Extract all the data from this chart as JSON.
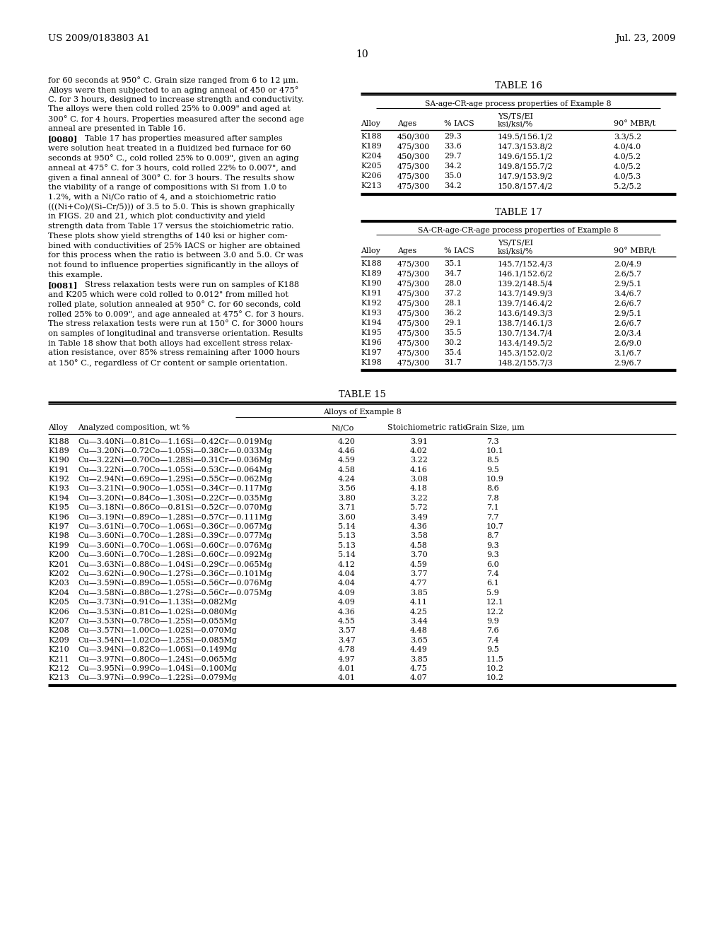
{
  "page_number": "10",
  "header_left": "US 2009/0183803 A1",
  "header_right": "Jul. 23, 2009",
  "body_text": [
    "for 60 seconds at 950° C. Grain size ranged from 6 to 12 μm.",
    "Alloys were then subjected to an aging anneal of 450 or 475°",
    "C. for 3 hours, designed to increase strength and conductivity.",
    "The alloys were then cold rolled 25% to 0.009\" and aged at",
    "300° C. for 4 hours. Properties measured after the second age",
    "anneal are presented in Table 16.",
    "[0080]",
    "Table 17 has properties measured after samples",
    "were solution heat treated in a fluidized bed furnace for 60",
    "seconds at 950° C., cold rolled 25% to 0.009\", given an aging",
    "anneal at 475° C. for 3 hours, cold rolled 22% to 0.007\", and",
    "given a final anneal of 300° C. for 3 hours. The results show",
    "the viability of a range of compositions with Si from 1.0 to",
    "1.2%, with a Ni/Co ratio of 4, and a stoichiometric ratio",
    "(((Ni+Co)/(Si–Cr/5))) of 3.5 to 5.0. This is shown graphically",
    "in FIGS. 20 and 21, which plot conductivity and yield",
    "strength data from Table 17 versus the stoichiometric ratio.",
    "These plots show yield strengths of 140 ksi or higher com-",
    "bined with conductivities of 25% IACS or higher are obtained",
    "for this process when the ratio is between 3.0 and 5.0. Cr was",
    "not found to influence properties significantly in the alloys of",
    "this example.",
    "[0081]",
    "Stress relaxation tests were run on samples of K188",
    "and K205 which were cold rolled to 0.012\" from milled hot",
    "rolled plate, solution annealed at 950° C. for 60 seconds, cold",
    "rolled 25% to 0.009\", and age annealed at 475° C. for 3 hours.",
    "The stress relaxation tests were run at 150° C. for 3000 hours",
    "on samples of longitudinal and transverse orientation. Results",
    "in Table 18 show that both alloys had excellent stress relax-",
    "ation resistance, over 85% stress remaining after 1000 hours",
    "at 150° C., regardless of Cr content or sample orientation."
  ],
  "table16": {
    "title": "TABLE 16",
    "subtitle": "SA-age-CR-age process properties of Example 8",
    "col_headers_line1": [
      "",
      "",
      "",
      "YS/TS/EI",
      ""
    ],
    "col_headers_line2": [
      "Alloy",
      "Ages",
      "% IACS",
      "ksi/ksi/%",
      "90° MBR/t"
    ],
    "rows": [
      [
        "K188",
        "450/300",
        "29.3",
        "149.5/156.1/2",
        "3.3/5.2"
      ],
      [
        "K189",
        "475/300",
        "33.6",
        "147.3/153.8/2",
        "4.0/4.0"
      ],
      [
        "K204",
        "450/300",
        "29.7",
        "149.6/155.1/2",
        "4.0/5.2"
      ],
      [
        "K205",
        "475/300",
        "34.2",
        "149.8/155.7/2",
        "4.0/5.2"
      ],
      [
        "K206",
        "475/300",
        "35.0",
        "147.9/153.9/2",
        "4.0/5.3"
      ],
      [
        "K213",
        "475/300",
        "34.2",
        "150.8/157.4/2",
        "5.2/5.2"
      ]
    ]
  },
  "table17": {
    "title": "TABLE 17",
    "subtitle": "SA-CR-age-CR-age process properties of Example 8",
    "col_headers_line1": [
      "",
      "",
      "",
      "YS/TS/EI",
      ""
    ],
    "col_headers_line2": [
      "Alloy",
      "Ages",
      "% IACS",
      "ksi/ksi/%",
      "90° MBR/t"
    ],
    "rows": [
      [
        "K188",
        "475/300",
        "35.1",
        "145.7/152.4/3",
        "2.0/4.9"
      ],
      [
        "K189",
        "475/300",
        "34.7",
        "146.1/152.6/2",
        "2.6/5.7"
      ],
      [
        "K190",
        "475/300",
        "28.0",
        "139.2/148.5/4",
        "2.9/5.1"
      ],
      [
        "K191",
        "475/300",
        "37.2",
        "143.7/149.9/3",
        "3.4/6.7"
      ],
      [
        "K192",
        "475/300",
        "28.1",
        "139.7/146.4/2",
        "2.6/6.7"
      ],
      [
        "K193",
        "475/300",
        "36.2",
        "143.6/149.3/3",
        "2.9/5.1"
      ],
      [
        "K194",
        "475/300",
        "29.1",
        "138.7/146.1/3",
        "2.6/6.7"
      ],
      [
        "K195",
        "475/300",
        "35.5",
        "130.7/134.7/4",
        "2.0/3.4"
      ],
      [
        "K196",
        "475/300",
        "30.2",
        "143.4/149.5/2",
        "2.6/9.0"
      ],
      [
        "K197",
        "475/300",
        "35.4",
        "145.3/152.0/2",
        "3.1/6.7"
      ],
      [
        "K198",
        "475/300",
        "31.7",
        "148.2/155.7/3",
        "2.9/6.7"
      ]
    ]
  },
  "table15": {
    "title": "TABLE 15",
    "subtitle": "Alloys of Example 8",
    "col_headers": [
      "Alloy",
      "Analyzed composition, wt %",
      "Ni/Co",
      "Stoichiometric ratio",
      "Grain Size, μm"
    ],
    "rows": [
      [
        "K188",
        "Cu—3.40Ni—0.81Co—1.16Si—0.42Cr—0.019Mg",
        "4.20",
        "3.91",
        "7.3"
      ],
      [
        "K189",
        "Cu—3.20Ni—0.72Co—1.05Si—0.38Cr—0.033Mg",
        "4.46",
        "4.02",
        "10.1"
      ],
      [
        "K190",
        "Cu—3.22Ni—0.70Co—1.28Si—0.31Cr—0.036Mg",
        "4.59",
        "3.22",
        "8.5"
      ],
      [
        "K191",
        "Cu—3.22Ni—0.70Co—1.05Si—0.53Cr—0.064Mg",
        "4.58",
        "4.16",
        "9.5"
      ],
      [
        "K192",
        "Cu—2.94Ni—0.69Co—1.29Si—0.55Cr—0.062Mg",
        "4.24",
        "3.08",
        "10.9"
      ],
      [
        "K193",
        "Cu—3.21Ni—0.90Co—1.05Si—0.34Cr—0.117Mg",
        "3.56",
        "4.18",
        "8.6"
      ],
      [
        "K194",
        "Cu—3.20Ni—0.84Co—1.30Si—0.22Cr—0.035Mg",
        "3.80",
        "3.22",
        "7.8"
      ],
      [
        "K195",
        "Cu—3.18Ni—0.86Co—0.81Si—0.52Cr—0.070Mg",
        "3.71",
        "5.72",
        "7.1"
      ],
      [
        "K196",
        "Cu—3.19Ni—0.89Co—1.28Si—0.57Cr—0.111Mg",
        "3.60",
        "3.49",
        "7.7"
      ],
      [
        "K197",
        "Cu—3.61Ni—0.70Co—1.06Si—0.36Cr—0.067Mg",
        "5.14",
        "4.36",
        "10.7"
      ],
      [
        "K198",
        "Cu—3.60Ni—0.70Co—1.28Si—0.39Cr—0.077Mg",
        "5.13",
        "3.58",
        "8.7"
      ],
      [
        "K199",
        "Cu—3.60Ni—0.70Co—1.06Si—0.60Cr—0.076Mg",
        "5.13",
        "4.58",
        "9.3"
      ],
      [
        "K200",
        "Cu—3.60Ni—0.70Co—1.28Si—0.60Cr—0.092Mg",
        "5.14",
        "3.70",
        "9.3"
      ],
      [
        "K201",
        "Cu—3.63Ni—0.88Co—1.04Si—0.29Cr—0.065Mg",
        "4.12",
        "4.59",
        "6.0"
      ],
      [
        "K202",
        "Cu—3.62Ni—0.90Co—1.27Si—0.36Cr—0.101Mg",
        "4.04",
        "3.77",
        "7.4"
      ],
      [
        "K203",
        "Cu—3.59Ni—0.89Co—1.05Si—0.56Cr—0.076Mg",
        "4.04",
        "4.77",
        "6.1"
      ],
      [
        "K204",
        "Cu—3.58Ni—0.88Co—1.27Si—0.56Cr—0.075Mg",
        "4.09",
        "3.85",
        "5.9"
      ],
      [
        "K205",
        "Cu—3.73Ni—0.91Co—1.13Si—0.082Mg",
        "4.09",
        "4.11",
        "12.1"
      ],
      [
        "K206",
        "Cu—3.53Ni—0.81Co—1.02Si—0.080Mg",
        "4.36",
        "4.25",
        "12.2"
      ],
      [
        "K207",
        "Cu—3.53Ni—0.78Co—1.25Si—0.055Mg",
        "4.55",
        "3.44",
        "9.9"
      ],
      [
        "K208",
        "Cu—3.57Ni—1.00Co—1.02Si—0.070Mg",
        "3.57",
        "4.48",
        "7.6"
      ],
      [
        "K209",
        "Cu—3.54Ni—1.02Co—1.25Si—0.085Mg",
        "3.47",
        "3.65",
        "7.4"
      ],
      [
        "K210",
        "Cu—3.94Ni—0.82Co—1.06Si—0.149Mg",
        "4.78",
        "4.49",
        "9.5"
      ],
      [
        "K211",
        "Cu—3.97Ni—0.80Co—1.24Si—0.065Mg",
        "4.97",
        "3.85",
        "11.5"
      ],
      [
        "K212",
        "Cu—3.95Ni—0.99Co—1.04Si—0.100Mg",
        "4.01",
        "4.75",
        "10.2"
      ],
      [
        "K213",
        "Cu—3.97Ni—0.99Co—1.22Si—0.079Mg",
        "4.01",
        "4.07",
        "10.2"
      ]
    ]
  }
}
